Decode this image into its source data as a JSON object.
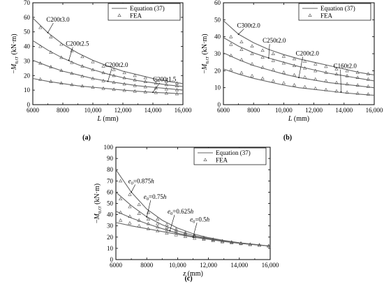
{
  "chart_data": [
    {
      "id": "a",
      "type": "line",
      "panel_label": "(a)",
      "xlabel": "L (mm)",
      "ylabel": "−M_u,cr (kN·m)",
      "xlim": [
        6000,
        16000
      ],
      "ylim": [
        0,
        70
      ],
      "xticks": [
        "6000",
        "8000",
        "10,000",
        "12,000",
        "14,000",
        "16,000"
      ],
      "yticks": [
        "0",
        "10",
        "20",
        "30",
        "40",
        "50",
        "60",
        "70"
      ],
      "legend": {
        "placement": "top-right",
        "line_label": "Equation (37)",
        "marker_label": "FEA"
      },
      "series": [
        {
          "name": "C200t3.0",
          "equation": {
            "x": [
              6000,
              7000,
              8000,
              9000,
              10000,
              11000,
              12000,
              13000,
              14000,
              15000,
              16000
            ],
            "y": [
              59.5,
              49.5,
              41.5,
              35.5,
              30.5,
              26.5,
              23.0,
              20.5,
              18.0,
              16.0,
              14.5
            ]
          },
          "fea": {
            "x": [
              6500,
              7200,
              7900,
              8600,
              9300,
              10000,
              10700,
              11400,
              12100,
              12800,
              13500,
              14200,
              14900,
              15600
            ],
            "y": [
              53,
              46.5,
              41.5,
              37,
              33,
              29.5,
              26.5,
              24,
              22,
              20,
              18.5,
              17,
              16,
              14.8
            ]
          }
        },
        {
          "name": "C200t2.5",
          "equation": {
            "x": [
              6000,
              7000,
              8000,
              9000,
              10000,
              11000,
              12000,
              13000,
              14000,
              15000,
              16000
            ],
            "y": [
              44.0,
              37.5,
              32.0,
              27.5,
              24.0,
              21.0,
              18.5,
              16.5,
              15.0,
              13.5,
              12.5
            ]
          },
          "fea": {
            "x": [
              6500,
              7200,
              7900,
              8600,
              9300,
              10000,
              10700,
              11400,
              12100,
              12800,
              13500,
              14200,
              14900,
              15600
            ],
            "y": [
              40,
              36,
              32.5,
              29,
              26.5,
              24,
              22,
              20,
              18.5,
              17,
              15.8,
              14.8,
              13.8,
              13
            ]
          }
        },
        {
          "name": "C200t2.0",
          "equation": {
            "x": [
              6000,
              7000,
              8000,
              9000,
              10000,
              11000,
              12000,
              13000,
              14000,
              15000,
              16000
            ],
            "y": [
              30.5,
              26.5,
              23.0,
              20.5,
              18.0,
              16.0,
              14.5,
              13.0,
              12.0,
              11.0,
              10.0
            ]
          },
          "fea": {
            "x": [
              6500,
              7200,
              7900,
              8600,
              9300,
              10000,
              10700,
              11400,
              12100,
              12800,
              13500,
              14200,
              14900,
              15600
            ],
            "y": [
              28.5,
              26,
              23.5,
              21.5,
              19.5,
              18,
              16.5,
              15.3,
              14.2,
              13.2,
              12.3,
              11.5,
              10.8,
              10.2
            ]
          }
        },
        {
          "name": "C200t1.5",
          "equation": {
            "x": [
              6000,
              7000,
              8000,
              9000,
              10000,
              11000,
              12000,
              13000,
              14000,
              15000,
              16000
            ],
            "y": [
              18.0,
              16.0,
              14.5,
              13.0,
              12.0,
              11.0,
              10.0,
              9.2,
              8.5,
              8.0,
              7.5
            ]
          },
          "fea": {
            "x": [
              6500,
              7200,
              7900,
              8600,
              9300,
              10000,
              10700,
              11400,
              12100,
              12800,
              13500,
              14200,
              14900,
              15600
            ],
            "y": [
              17.5,
              16,
              14.8,
              13.8,
              12.8,
              12,
              11.2,
              10.5,
              9.9,
              9.3,
              8.8,
              8.3,
              7.9,
              7.5
            ]
          }
        }
      ],
      "annotations": [
        {
          "text": "C200t3.0",
          "tx": 6900,
          "ty": 57,
          "ax": 7000,
          "ay": 49.5
        },
        {
          "text": "C200t2.5",
          "tx": 8200,
          "ty": 40.5,
          "ax": 8400,
          "ay": 30.5
        },
        {
          "text": "C200t2.0",
          "tx": 10800,
          "ty": 26,
          "ax": 11000,
          "ay": 16
        },
        {
          "text": "C200t1.5",
          "tx": 14000,
          "ty": 16,
          "ax": 14000,
          "ay": 8.5
        }
      ]
    },
    {
      "id": "b",
      "type": "line",
      "panel_label": "(b)",
      "xlabel": "L (mm)",
      "ylabel": "−M_u,cr (kN·m)",
      "xlim": [
        6000,
        16000
      ],
      "ylim": [
        0,
        60
      ],
      "xticks": [
        "6000",
        "8000",
        "10,000",
        "12,000",
        "14,000",
        "16,000"
      ],
      "yticks": [
        "0",
        "10",
        "20",
        "30",
        "40",
        "50",
        "60"
      ],
      "legend": {
        "placement": "top-right",
        "line_label": "Equation (37)",
        "marker_label": "FEA"
      },
      "series": [
        {
          "name": "C300t2.0",
          "equation": {
            "x": [
              6000,
              7000,
              8000,
              9000,
              10000,
              11000,
              12000,
              13000,
              14000,
              15000,
              16000
            ],
            "y": [
              49.5,
              41.5,
              36.5,
              32.5,
              29.5,
              27.0,
              25.0,
              23.0,
              21.0,
              19.0,
              17.5
            ]
          },
          "fea": {
            "x": [
              6500,
              7200,
              7900,
              8600,
              9300,
              10000,
              10700,
              11400,
              12100,
              12800,
              13500,
              14200,
              14900,
              15600
            ],
            "y": [
              40,
              37,
              34.5,
              32,
              30,
              28.5,
              27,
              25.5,
              24,
              22.5,
              21,
              20,
              19,
              18.2
            ]
          }
        },
        {
          "name": "C250t2.0",
          "equation": {
            "x": [
              6000,
              7000,
              8000,
              9000,
              10000,
              11000,
              12000,
              13000,
              14000,
              15000,
              16000
            ],
            "y": [
              39.5,
              34.5,
              30.5,
              27.5,
              25.0,
              22.5,
              20.5,
              18.5,
              17.0,
              15.5,
              14.0
            ]
          },
          "fea": {
            "x": [
              6500,
              7200,
              7900,
              8600,
              9300,
              10000,
              10700,
              11400,
              12100,
              12800,
              13500,
              14200,
              14900,
              15600
            ],
            "y": [
              35.5,
              32.5,
              30,
              28,
              26,
              24.5,
              23,
              21.5,
              20,
              19,
              18,
              17,
              16,
              15
            ]
          }
        },
        {
          "name": "C200t2.0",
          "equation": {
            "x": [
              6000,
              7000,
              8000,
              9000,
              10000,
              11000,
              12000,
              13000,
              14000,
              15000,
              16000
            ],
            "y": [
              30.5,
              26.5,
              23.0,
              20.5,
              18.0,
              16.0,
              14.5,
              13.0,
              12.0,
              11.0,
              10.0
            ]
          },
          "fea": {
            "x": [
              6500,
              7200,
              7900,
              8600,
              9300,
              10000,
              10700,
              11400,
              12100,
              12800,
              13500,
              14200,
              14900,
              15600
            ],
            "y": [
              29,
              26.5,
              24,
              22,
              20.5,
              19,
              17.5,
              16.2,
              15,
              14,
              13,
              12.2,
              11.5,
              10.8
            ]
          }
        },
        {
          "name": "C160t2.0",
          "equation": {
            "x": [
              6000,
              7000,
              8000,
              9000,
              10000,
              11000,
              12000,
              13000,
              14000,
              15000,
              16000
            ],
            "y": [
              21.0,
              18.0,
              15.5,
              13.5,
              11.5,
              10.0,
              9.0,
              8.0,
              7.0,
              6.2,
              5.5
            ]
          },
          "fea": {
            "x": [
              6500,
              7200,
              7900,
              8600,
              9300,
              10000,
              10700,
              11400,
              12100,
              12800,
              13500,
              14200,
              14900,
              15600
            ],
            "y": [
              20.5,
              18.8,
              17,
              15.5,
              14,
              12.8,
              11.6,
              10.5,
              9.6,
              8.8,
              8,
              7.3,
              6.7,
              6.2
            ]
          }
        }
      ],
      "annotations": [
        {
          "text": "C300t2.0",
          "tx": 6900,
          "ty": 45.5,
          "ax": 7000,
          "ay": 41.5
        },
        {
          "text": "C250t2.0",
          "tx": 8600,
          "ty": 36.5,
          "ax": 9000,
          "ay": 27.5
        },
        {
          "text": "C200t2.0",
          "tx": 10800,
          "ty": 29,
          "ax": 11000,
          "ay": 16
        },
        {
          "text": "C160t2.0",
          "tx": 13300,
          "ty": 21.5,
          "ax": 13800,
          "ay": 7.5
        }
      ]
    },
    {
      "id": "c",
      "type": "line",
      "panel_label": "(c)",
      "xlabel": "z (mm)",
      "ylabel": "−M_u,cr (kN·m)",
      "xlim": [
        6000,
        16000
      ],
      "ylim": [
        0,
        100
      ],
      "xticks": [
        "6000",
        "8000",
        "10,000",
        "12,000",
        "14,000",
        "16,000"
      ],
      "yticks": [
        "0",
        "10",
        "20",
        "30",
        "40",
        "50",
        "60",
        "70",
        "80",
        "90",
        "100"
      ],
      "legend": {
        "placement": "top-right",
        "line_label": "Equation (37)",
        "marker_label": "FEA"
      },
      "series": [
        {
          "name": "e0=0.875h",
          "equation": {
            "x": [
              6000,
              7000,
              8000,
              9000,
              10000,
              11000,
              12000,
              13000,
              14000,
              15000,
              16000
            ],
            "y": [
              80,
              60,
              45,
              35,
              28,
              23,
              19.5,
              17,
              15,
              13.5,
              12
            ]
          },
          "fea": {
            "x": [
              6300,
              6900,
              7500,
              8100,
              8700,
              9300,
              9900,
              10500,
              11100,
              11700,
              12300,
              12900,
              13500,
              14100,
              14700,
              15300,
              15900
            ],
            "y": [
              70,
              58,
              49,
              42,
              36,
              31,
              27,
              24,
              21.5,
              19.5,
              18,
              16.5,
              15.5,
              14.5,
              13.5,
              13,
              12.2
            ]
          }
        },
        {
          "name": "e0=0.75h",
          "equation": {
            "x": [
              6000,
              7000,
              8000,
              9000,
              10000,
              11000,
              12000,
              13000,
              14000,
              15000,
              16000
            ],
            "y": [
              60,
              48,
              38,
              31,
              25.5,
              21.5,
              19,
              16.5,
              15,
              13.5,
              12
            ]
          },
          "fea": {
            "x": [
              6300,
              6900,
              7500,
              8100,
              8700,
              9300,
              9900,
              10500,
              11100,
              11700,
              12300,
              12900,
              13500,
              14100,
              14700,
              15300,
              15900
            ],
            "y": [
              54,
              47,
              41,
              36,
              32,
              28.5,
              25.5,
              23,
              21,
              19.5,
              18,
              16.5,
              15.5,
              14.5,
              13.5,
              13,
              12.2
            ]
          }
        },
        {
          "name": "e0=0.625h",
          "equation": {
            "x": [
              6000,
              7000,
              8000,
              9000,
              10000,
              11000,
              12000,
              13000,
              14000,
              15000,
              16000
            ],
            "y": [
              43,
              37,
              32,
              27.5,
              23.5,
              20.5,
              18.5,
              16.5,
              14.5,
              13.2,
              12
            ]
          },
          "fea": {
            "x": [
              6300,
              6900,
              7500,
              8100,
              8700,
              9300,
              9900,
              10500,
              11100,
              11700,
              12300,
              12900,
              13500,
              14100,
              14700,
              15300,
              15900
            ],
            "y": [
              42,
              38.5,
              35,
              32,
              29,
              26.5,
              24,
              22,
              20.5,
              19,
              17.5,
              16.5,
              15.5,
              14.5,
              13.5,
              13,
              12.2
            ]
          }
        },
        {
          "name": "e0=0.5h",
          "equation": {
            "x": [
              6000,
              7000,
              8000,
              9000,
              10000,
              11000,
              12000,
              13000,
              14000,
              15000,
              16000
            ],
            "y": [
              33,
              30,
              27.5,
              25,
              22.5,
              20,
              18,
              16,
              14.5,
              13.2,
              12
            ]
          },
          "fea": {
            "x": [
              6300,
              6900,
              7500,
              8100,
              8700,
              9300,
              9900,
              10500,
              11100,
              11700,
              12300,
              12900,
              13500,
              14100,
              14700,
              15300,
              15900
            ],
            "y": [
              35,
              32.5,
              30,
              27.5,
              25.5,
              23.5,
              22,
              20.5,
              19,
              18,
              16.8,
              15.8,
              15,
              14.2,
              13.5,
              12.8,
              12.2
            ]
          }
        }
      ],
      "annotations": [
        {
          "text": "e0=0.875h",
          "base": "e",
          "sub": "0",
          "rest": "=0.875h",
          "tx": 6800,
          "ty": 68,
          "ax": 7000,
          "ay": 60
        },
        {
          "text": "e0=0.75h",
          "base": "e",
          "sub": "0",
          "rest": "=0.75h",
          "tx": 7800,
          "ty": 54,
          "ax": 8000,
          "ay": 38
        },
        {
          "text": "e0=0.625h",
          "base": "e",
          "sub": "0",
          "rest": "=0.625h",
          "tx": 9350,
          "ty": 41,
          "ax": 9500,
          "ay": 25.5
        },
        {
          "text": "e0=0.5h",
          "base": "e",
          "sub": "0",
          "rest": "=0.5h",
          "tx": 10800,
          "ty": 34,
          "ax": 11000,
          "ay": 20
        }
      ]
    }
  ]
}
